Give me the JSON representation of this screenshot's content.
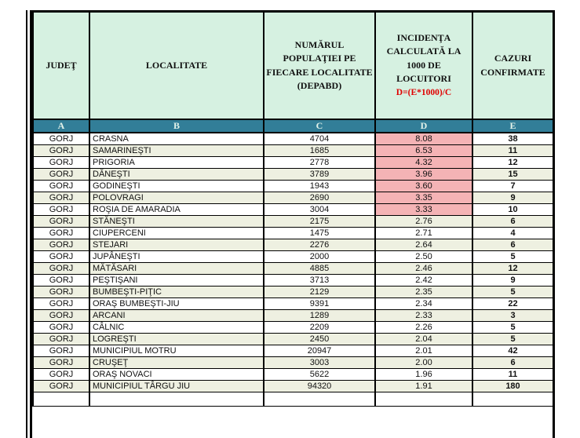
{
  "title": "Incidence table - GORJ county",
  "colors": {
    "header_bg": "#d6f1e1",
    "letters_band_bg": "#327e98",
    "letters_band_text": "#e3f3ea",
    "highlight_pink": "#f4b3b5",
    "alt_row_cream": "#eef0e1",
    "formula_red": "#e00000",
    "border": "#000000"
  },
  "header": {
    "judet": "JUDEŢ",
    "localitate": "LOCALITATE",
    "populatie": "NUMĂRUL\nPOPULAŢIEI PE\nFIECARE LOCALITATE\n(DEPABD)",
    "incidenta": "INCIDENŢA\nCALCULATĂ LA\n1000 DE\nLOCUITORI",
    "incidenta_formula": "D=(E*1000)/C",
    "cazuri": "CAZURI\nCONFIRMATE"
  },
  "column_letters": {
    "a": "A",
    "b": "B",
    "c": "C",
    "d": "D",
    "e": "E"
  },
  "rows": [
    {
      "judet": "GORJ",
      "localitate": "CRASNA",
      "populatie": "4704",
      "incidenta": "8.08",
      "cazuri": "38",
      "highlight": true
    },
    {
      "judet": "GORJ",
      "localitate": "SAMARINEŞTI",
      "populatie": "1685",
      "incidenta": "6.53",
      "cazuri": "11",
      "highlight": true
    },
    {
      "judet": "GORJ",
      "localitate": "PRIGORIA",
      "populatie": "2778",
      "incidenta": "4.32",
      "cazuri": "12",
      "highlight": true
    },
    {
      "judet": "GORJ",
      "localitate": "DĂNEŞTI",
      "populatie": "3789",
      "incidenta": "3.96",
      "cazuri": "15",
      "highlight": true
    },
    {
      "judet": "GORJ",
      "localitate": "GODINEŞTI",
      "populatie": "1943",
      "incidenta": "3.60",
      "cazuri": "7",
      "highlight": true
    },
    {
      "judet": "GORJ",
      "localitate": "POLOVRAGI",
      "populatie": "2690",
      "incidenta": "3.35",
      "cazuri": "9",
      "highlight": true
    },
    {
      "judet": "GORJ",
      "localitate": "ROŞIA DE AMARADIA",
      "populatie": "3004",
      "incidenta": "3.33",
      "cazuri": "10",
      "highlight": true
    },
    {
      "judet": "GORJ",
      "localitate": "STĂNEŞTI",
      "populatie": "2175",
      "incidenta": "2.76",
      "cazuri": "6",
      "highlight": false
    },
    {
      "judet": "GORJ",
      "localitate": "CIUPERCENI",
      "populatie": "1475",
      "incidenta": "2.71",
      "cazuri": "4",
      "highlight": false
    },
    {
      "judet": "GORJ",
      "localitate": "STEJARI",
      "populatie": "2276",
      "incidenta": "2.64",
      "cazuri": "6",
      "highlight": false
    },
    {
      "judet": "GORJ",
      "localitate": "JUPÂNEŞTI",
      "populatie": "2000",
      "incidenta": "2.50",
      "cazuri": "5",
      "highlight": false
    },
    {
      "judet": "GORJ",
      "localitate": "MĂTĂSARI",
      "populatie": "4885",
      "incidenta": "2.46",
      "cazuri": "12",
      "highlight": false
    },
    {
      "judet": "GORJ",
      "localitate": "PEŞTIŞANI",
      "populatie": "3713",
      "incidenta": "2.42",
      "cazuri": "9",
      "highlight": false
    },
    {
      "judet": "GORJ",
      "localitate": "BUMBEŞTI-PIŢIC",
      "populatie": "2129",
      "incidenta": "2.35",
      "cazuri": "5",
      "highlight": false
    },
    {
      "judet": "GORJ",
      "localitate": "ORAŞ BUMBEŞTI-JIU",
      "populatie": "9391",
      "incidenta": "2.34",
      "cazuri": "22",
      "highlight": false
    },
    {
      "judet": "GORJ",
      "localitate": "ARCANI",
      "populatie": "1289",
      "incidenta": "2.33",
      "cazuri": "3",
      "highlight": false
    },
    {
      "judet": "GORJ",
      "localitate": "CÂLNIC",
      "populatie": "2209",
      "incidenta": "2.26",
      "cazuri": "5",
      "highlight": false
    },
    {
      "judet": "GORJ",
      "localitate": "LOGREŞTI",
      "populatie": "2450",
      "incidenta": "2.04",
      "cazuri": "5",
      "highlight": false
    },
    {
      "judet": "GORJ",
      "localitate": "MUNICIPIUL MOTRU",
      "populatie": "20947",
      "incidenta": "2.01",
      "cazuri": "42",
      "highlight": false
    },
    {
      "judet": "GORJ",
      "localitate": "CRUŞEŢ",
      "populatie": "3003",
      "incidenta": "2.00",
      "cazuri": "6",
      "highlight": false
    },
    {
      "judet": "GORJ",
      "localitate": "ORAŞ NOVACI",
      "populatie": "5622",
      "incidenta": "1.96",
      "cazuri": "11",
      "highlight": false
    },
    {
      "judet": "GORJ",
      "localitate": "MUNICIPIUL TÂRGU JIU",
      "populatie": "94320",
      "incidenta": "1.91",
      "cazuri": "180",
      "highlight": false
    }
  ]
}
